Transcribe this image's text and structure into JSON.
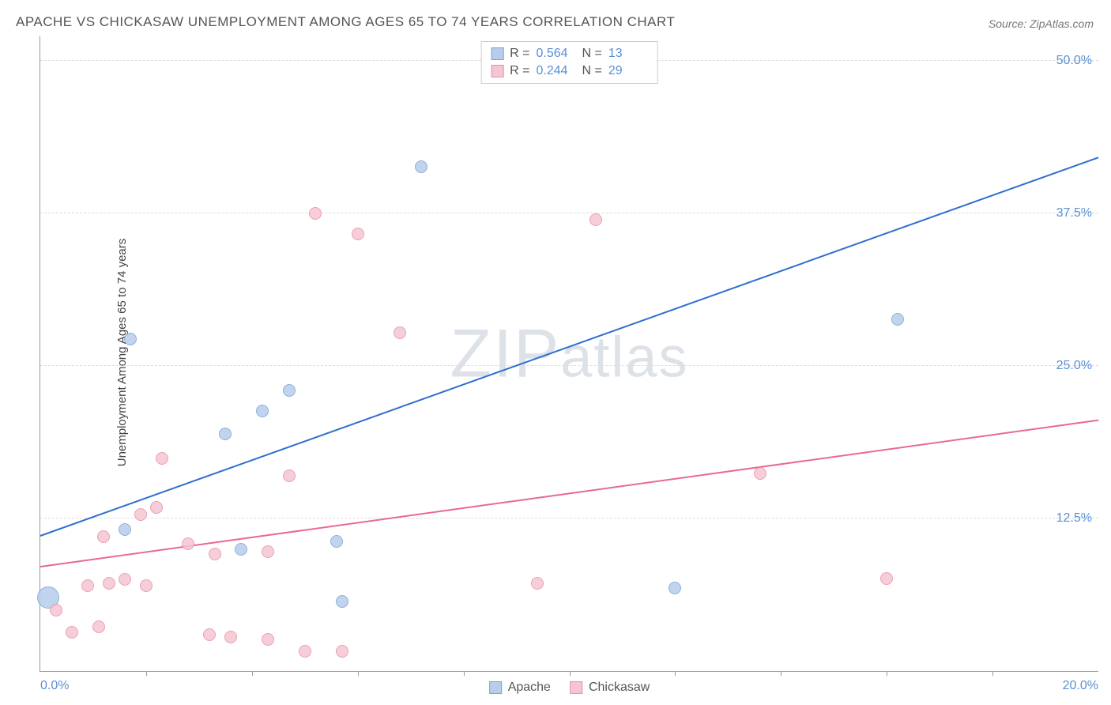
{
  "title": "APACHE VS CHICKASAW UNEMPLOYMENT AMONG AGES 65 TO 74 YEARS CORRELATION CHART",
  "source_label": "Source: ZipAtlas.com",
  "ylabel": "Unemployment Among Ages 65 to 74 years",
  "watermark": {
    "part1": "ZIP",
    "part2": "atlas"
  },
  "chart": {
    "type": "scatter",
    "background_color": "#ffffff",
    "grid_color": "#dddddd",
    "axis_color": "#999999",
    "xlim": [
      0,
      20
    ],
    "ylim": [
      0,
      52
    ],
    "xtick_labels": [
      {
        "x": 0,
        "label": "0.0%",
        "align": "left"
      },
      {
        "x": 20,
        "label": "20.0%",
        "align": "right"
      }
    ],
    "xtick_minor": [
      2,
      4,
      6,
      8,
      10,
      12,
      14,
      16,
      18
    ],
    "ytick_labels": [
      {
        "y": 12.5,
        "label": "12.5%"
      },
      {
        "y": 25.0,
        "label": "25.0%"
      },
      {
        "y": 37.5,
        "label": "37.5%"
      },
      {
        "y": 50.0,
        "label": "50.0%"
      }
    ],
    "series": [
      {
        "name": "Apache",
        "fill": "#b7cdea",
        "stroke": "#7ba3d6",
        "line_color": "#2e6fd1",
        "r_value": "0.564",
        "n_value": "13",
        "marker_radius": 8,
        "trend": {
          "x1": 0,
          "y1": 11.0,
          "x2": 20,
          "y2": 42.0
        },
        "points": [
          {
            "x": 0.15,
            "y": 6.0,
            "r": 14
          },
          {
            "x": 1.6,
            "y": 11.6
          },
          {
            "x": 1.7,
            "y": 27.2
          },
          {
            "x": 3.5,
            "y": 19.4
          },
          {
            "x": 3.8,
            "y": 10.0
          },
          {
            "x": 4.2,
            "y": 21.3
          },
          {
            "x": 4.7,
            "y": 23.0
          },
          {
            "x": 5.6,
            "y": 10.6
          },
          {
            "x": 5.7,
            "y": 5.7
          },
          {
            "x": 7.2,
            "y": 41.3
          },
          {
            "x": 12.0,
            "y": 6.8
          },
          {
            "x": 16.2,
            "y": 28.8
          }
        ]
      },
      {
        "name": "Chickasaw",
        "fill": "#f5c6d2",
        "stroke": "#e98fa8",
        "line_color": "#e76b8c",
        "r_value": "0.244",
        "n_value": "29",
        "marker_radius": 8,
        "trend": {
          "x1": 0,
          "y1": 8.5,
          "x2": 20,
          "y2": 20.5
        },
        "points": [
          {
            "x": 0.3,
            "y": 5.0
          },
          {
            "x": 0.6,
            "y": 3.2
          },
          {
            "x": 0.9,
            "y": 7.0
          },
          {
            "x": 1.1,
            "y": 3.6
          },
          {
            "x": 1.2,
            "y": 11.0
          },
          {
            "x": 1.3,
            "y": 7.2
          },
          {
            "x": 1.6,
            "y": 7.5
          },
          {
            "x": 1.9,
            "y": 12.8
          },
          {
            "x": 2.0,
            "y": 7.0
          },
          {
            "x": 2.2,
            "y": 13.4
          },
          {
            "x": 2.3,
            "y": 17.4
          },
          {
            "x": 2.8,
            "y": 10.4
          },
          {
            "x": 3.2,
            "y": 3.0
          },
          {
            "x": 3.3,
            "y": 9.6
          },
          {
            "x": 3.6,
            "y": 2.8
          },
          {
            "x": 4.3,
            "y": 9.8
          },
          {
            "x": 4.3,
            "y": 2.6
          },
          {
            "x": 4.7,
            "y": 16.0
          },
          {
            "x": 5.0,
            "y": 1.6
          },
          {
            "x": 5.2,
            "y": 37.5
          },
          {
            "x": 5.7,
            "y": 1.6
          },
          {
            "x": 6.0,
            "y": 35.8
          },
          {
            "x": 6.8,
            "y": 27.7
          },
          {
            "x": 9.4,
            "y": 7.2
          },
          {
            "x": 10.5,
            "y": 37.0
          },
          {
            "x": 13.6,
            "y": 16.2
          },
          {
            "x": 16.0,
            "y": 7.6
          }
        ]
      }
    ]
  },
  "legend_top_labels": {
    "r": "R =",
    "n": "N ="
  },
  "legend_bottom": [
    {
      "key": "Apache"
    },
    {
      "key": "Chickasaw"
    }
  ]
}
